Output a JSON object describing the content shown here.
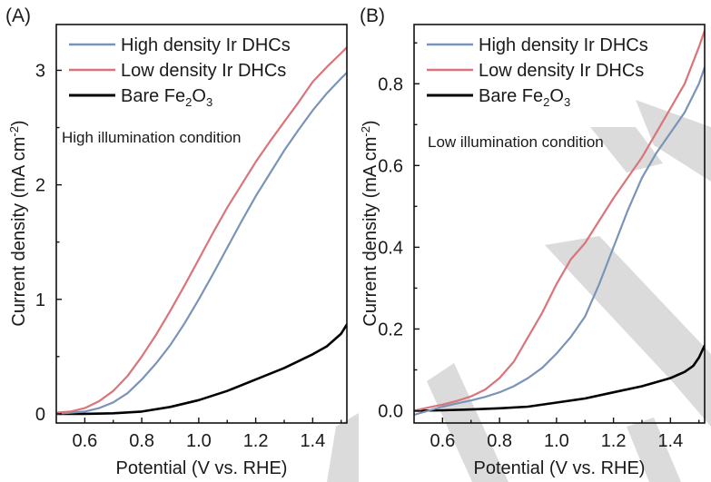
{
  "chart_data": [
    {
      "type": "line",
      "panel_label": "(A)",
      "title": "",
      "annotation": "High illumination condition",
      "xlabel": "Potential (V vs. RHE)",
      "ylabel": "Current density (mA cm",
      "ylabel_sup": "-2",
      "ylabel_close": ")",
      "xlim": [
        0.5,
        1.52
      ],
      "ylim": [
        -0.08,
        3.4
      ],
      "xticks": [
        0.6,
        0.8,
        1.0,
        1.2,
        1.4
      ],
      "xtick_labels": [
        "0.6",
        "0.8",
        "1.0",
        "1.2",
        "1.4"
      ],
      "xminor": [
        0.5,
        0.7,
        0.9,
        1.1,
        1.3,
        1.5
      ],
      "yticks": [
        0,
        1,
        2,
        3
      ],
      "ytick_labels": [
        "0",
        "1",
        "2",
        "3"
      ],
      "yminor": [
        0.5,
        1.5,
        2.5
      ],
      "grid": false,
      "legend_position": "top-left",
      "series": [
        {
          "name": "High density Ir DHCs",
          "color": "#7a94b8",
          "x": [
            0.5,
            0.55,
            0.6,
            0.65,
            0.7,
            0.75,
            0.8,
            0.85,
            0.9,
            0.95,
            1.0,
            1.05,
            1.1,
            1.15,
            1.2,
            1.25,
            1.3,
            1.35,
            1.4,
            1.45,
            1.5,
            1.52
          ],
          "y": [
            0.0,
            0.01,
            0.02,
            0.05,
            0.1,
            0.18,
            0.3,
            0.44,
            0.6,
            0.79,
            1.0,
            1.22,
            1.45,
            1.68,
            1.9,
            2.1,
            2.3,
            2.48,
            2.65,
            2.8,
            2.93,
            2.98
          ]
        },
        {
          "name": "Low density Ir DHCs",
          "color": "#d9757a",
          "x": [
            0.5,
            0.55,
            0.6,
            0.65,
            0.7,
            0.75,
            0.8,
            0.85,
            0.9,
            0.95,
            1.0,
            1.05,
            1.1,
            1.15,
            1.2,
            1.25,
            1.3,
            1.35,
            1.4,
            1.45,
            1.5,
            1.52
          ],
          "y": [
            0.01,
            0.02,
            0.05,
            0.11,
            0.2,
            0.33,
            0.5,
            0.69,
            0.9,
            1.12,
            1.35,
            1.58,
            1.8,
            2.0,
            2.2,
            2.38,
            2.55,
            2.72,
            2.9,
            3.03,
            3.15,
            3.2
          ]
        },
        {
          "name": "Bare Fe2O3",
          "color": "#000000",
          "x": [
            0.5,
            0.6,
            0.7,
            0.8,
            0.9,
            1.0,
            1.1,
            1.2,
            1.3,
            1.4,
            1.45,
            1.5,
            1.52
          ],
          "y": [
            0.0,
            0.0,
            0.005,
            0.02,
            0.06,
            0.12,
            0.2,
            0.3,
            0.4,
            0.52,
            0.59,
            0.7,
            0.78
          ]
        }
      ]
    },
    {
      "type": "line",
      "panel_label": "(B)",
      "title": "",
      "annotation": "Low illumination condition",
      "xlabel": "Potential (V vs. RHE)",
      "ylabel": "Current density (mA cm",
      "ylabel_sup": "-2",
      "ylabel_close": ")",
      "xlim": [
        0.5,
        1.52
      ],
      "ylim": [
        -0.03,
        0.945
      ],
      "xticks": [
        0.6,
        0.8,
        1.0,
        1.2,
        1.4
      ],
      "xtick_labels": [
        "0.6",
        "0.8",
        "1.0",
        "1.2",
        "1.4"
      ],
      "xminor": [
        0.5,
        0.7,
        0.9,
        1.1,
        1.3,
        1.5
      ],
      "yticks": [
        0.0,
        0.2,
        0.4,
        0.6,
        0.8
      ],
      "ytick_labels": [
        "0.0",
        "0.2",
        "0.4",
        "0.6",
        "0.8"
      ],
      "yminor": [
        0.1,
        0.3,
        0.5,
        0.7,
        0.9
      ],
      "grid": false,
      "legend_position": "top-left",
      "series": [
        {
          "name": "High density Ir DHCs",
          "color": "#7a94b8",
          "x": [
            0.5,
            0.55,
            0.6,
            0.65,
            0.7,
            0.75,
            0.8,
            0.85,
            0.9,
            0.95,
            1.0,
            1.05,
            1.1,
            1.15,
            1.2,
            1.25,
            1.3,
            1.35,
            1.4,
            1.45,
            1.5,
            1.52
          ],
          "y": [
            -0.01,
            0.0,
            0.01,
            0.018,
            0.025,
            0.034,
            0.045,
            0.06,
            0.08,
            0.105,
            0.14,
            0.18,
            0.23,
            0.31,
            0.4,
            0.49,
            0.57,
            0.63,
            0.68,
            0.73,
            0.8,
            0.84
          ]
        },
        {
          "name": "Low density Ir DHCs",
          "color": "#d9757a",
          "x": [
            0.5,
            0.55,
            0.6,
            0.65,
            0.7,
            0.75,
            0.8,
            0.85,
            0.9,
            0.95,
            1.0,
            1.05,
            1.1,
            1.15,
            1.2,
            1.25,
            1.3,
            1.35,
            1.4,
            1.45,
            1.5,
            1.52
          ],
          "y": [
            0.0,
            0.008,
            0.015,
            0.024,
            0.035,
            0.052,
            0.08,
            0.12,
            0.18,
            0.24,
            0.31,
            0.37,
            0.41,
            0.465,
            0.52,
            0.57,
            0.62,
            0.68,
            0.74,
            0.8,
            0.89,
            0.93
          ]
        },
        {
          "name": "Bare Fe2O3",
          "color": "#000000",
          "x": [
            0.5,
            0.6,
            0.7,
            0.8,
            0.9,
            1.0,
            1.1,
            1.2,
            1.3,
            1.4,
            1.45,
            1.48,
            1.5,
            1.52
          ],
          "y": [
            0.0,
            0.001,
            0.003,
            0.006,
            0.01,
            0.02,
            0.03,
            0.045,
            0.06,
            0.08,
            0.095,
            0.11,
            0.13,
            0.16
          ]
        }
      ]
    }
  ],
  "legend": {
    "items": [
      {
        "label": "High density Ir DHCs"
      },
      {
        "label": "Low density Ir DHCs"
      },
      {
        "label_main": "Bare Fe",
        "sub1": "2",
        "mid": "O",
        "sub2": "3"
      }
    ]
  }
}
